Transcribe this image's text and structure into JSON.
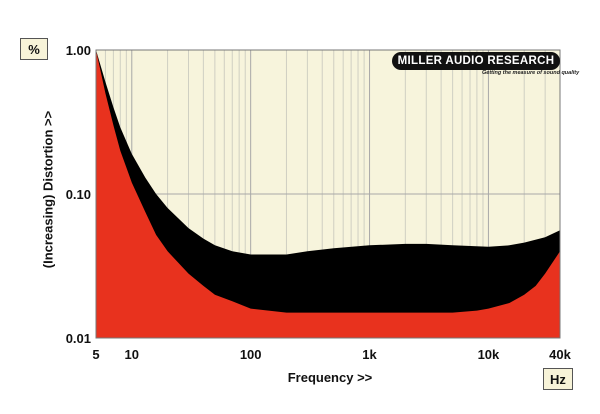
{
  "units": {
    "y": "%",
    "x": "Hz"
  },
  "logo": {
    "text": "MILLER AUDIO RESEARCH",
    "tagline": "Getting the measure of sound quality"
  },
  "colors": {
    "background_plot": "#f7f4dc",
    "distortion_fill": "#e8321e",
    "band_fill": "#000000",
    "grid": "#b8b8b8"
  },
  "chart_data": {
    "type": "area",
    "title": "",
    "xlabel": "Frequency >>",
    "ylabel": "(Increasing) Distortion >>",
    "x_scale": "log",
    "y_scale": "log",
    "xlim": [
      5,
      40000
    ],
    "ylim": [
      0.01,
      1.0
    ],
    "x_ticks": [
      {
        "value": 5,
        "label": "5"
      },
      {
        "value": 10,
        "label": "10"
      },
      {
        "value": 100,
        "label": "100"
      },
      {
        "value": 1000,
        "label": "1k"
      },
      {
        "value": 10000,
        "label": "10k"
      },
      {
        "value": 40000,
        "label": "40k"
      }
    ],
    "y_ticks": [
      {
        "value": 1.0,
        "label": "1.00"
      },
      {
        "value": 0.1,
        "label": "0.10"
      },
      {
        "value": 0.01,
        "label": "0.01"
      }
    ],
    "grid": true,
    "legend": "none",
    "series": [
      {
        "values_upper": [
          [
            5,
            1.0
          ],
          [
            6,
            0.6
          ],
          [
            7,
            0.4
          ],
          [
            8,
            0.29
          ],
          [
            10,
            0.19
          ],
          [
            13,
            0.13
          ],
          [
            16,
            0.1
          ],
          [
            20,
            0.08
          ],
          [
            30,
            0.058
          ],
          [
            40,
            0.049
          ],
          [
            50,
            0.044
          ],
          [
            70,
            0.04
          ],
          [
            100,
            0.038
          ],
          [
            200,
            0.038
          ],
          [
            300,
            0.04
          ],
          [
            500,
            0.042
          ],
          [
            1000,
            0.044
          ],
          [
            2000,
            0.045
          ],
          [
            3000,
            0.045
          ],
          [
            5000,
            0.044
          ],
          [
            10000,
            0.043
          ],
          [
            15000,
            0.044
          ],
          [
            20000,
            0.046
          ],
          [
            30000,
            0.05
          ],
          [
            40000,
            0.056
          ]
        ],
        "values_lower": [
          [
            5,
            1.0
          ],
          [
            6,
            0.5
          ],
          [
            7,
            0.3
          ],
          [
            8,
            0.2
          ],
          [
            10,
            0.12
          ],
          [
            13,
            0.075
          ],
          [
            16,
            0.052
          ],
          [
            20,
            0.04
          ],
          [
            30,
            0.028
          ],
          [
            40,
            0.023
          ],
          [
            50,
            0.02
          ],
          [
            70,
            0.018
          ],
          [
            100,
            0.016
          ],
          [
            200,
            0.015
          ],
          [
            500,
            0.015
          ],
          [
            1000,
            0.015
          ],
          [
            2000,
            0.015
          ],
          [
            5000,
            0.015
          ],
          [
            8000,
            0.0155
          ],
          [
            10000,
            0.016
          ],
          [
            15000,
            0.0175
          ],
          [
            20000,
            0.02
          ],
          [
            25000,
            0.023
          ],
          [
            30000,
            0.028
          ],
          [
            40000,
            0.04
          ]
        ]
      }
    ]
  }
}
